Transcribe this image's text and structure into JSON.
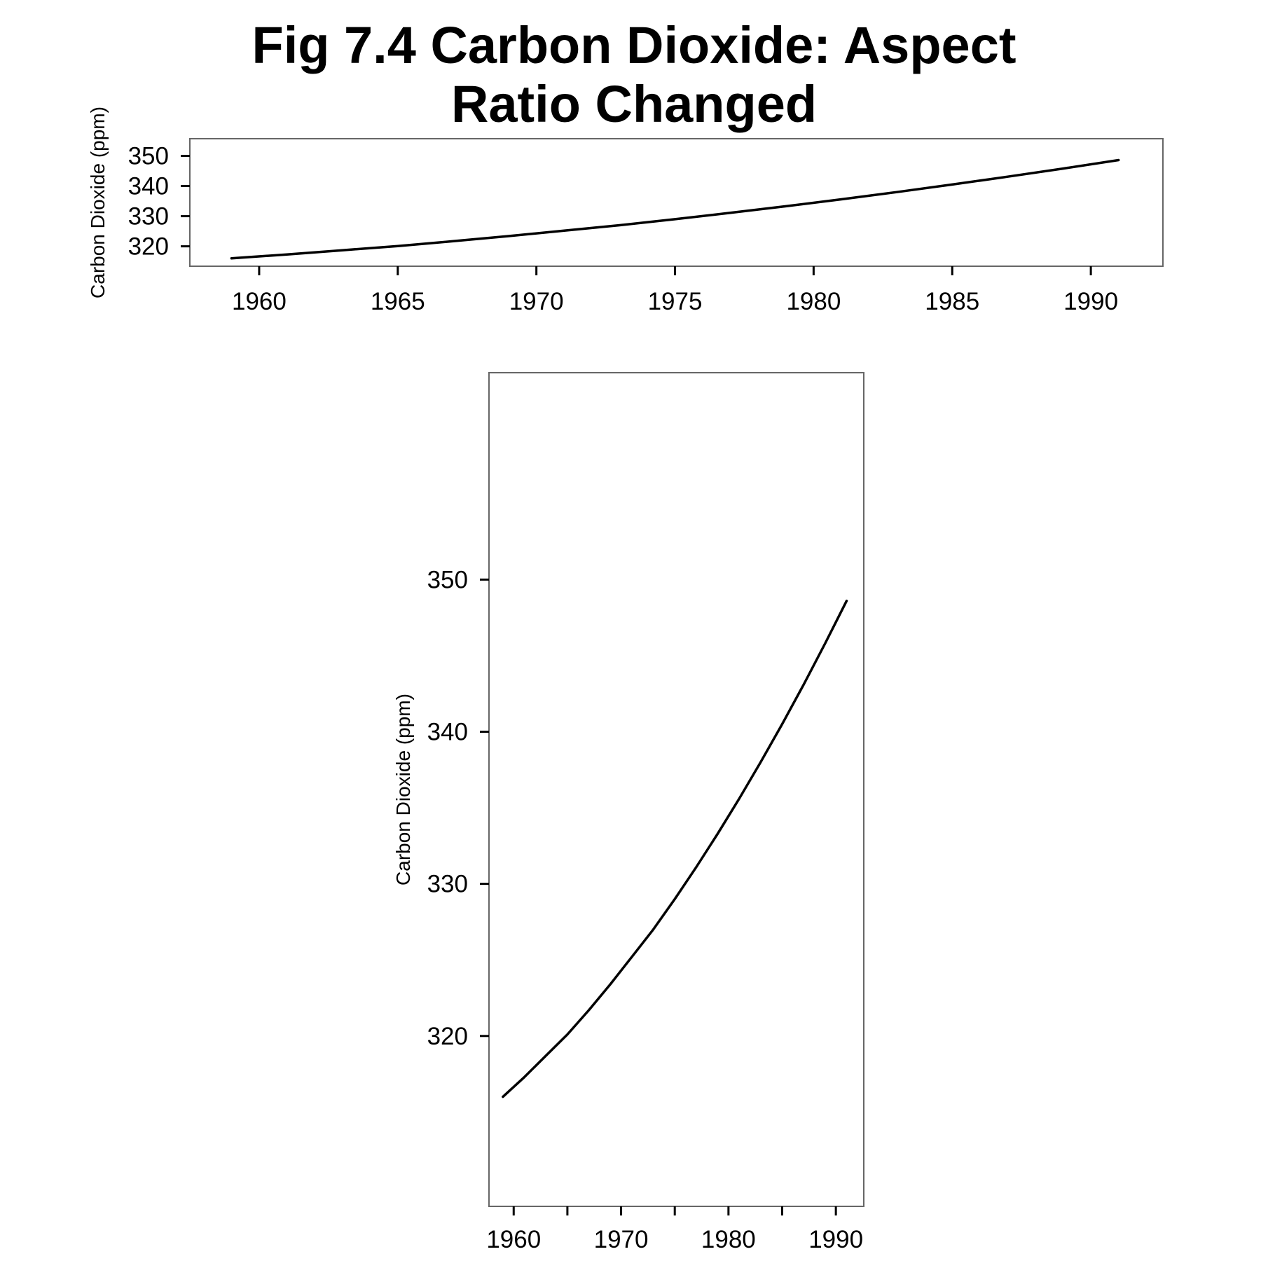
{
  "figure": {
    "title_line1": "Fig 7.4 Carbon Dioxide: Aspect",
    "title_line2": "Ratio Changed"
  },
  "chart_data": [
    {
      "type": "line",
      "panel": "top (wide, short)",
      "ylabel": "Carbon Dioxide (ppm)",
      "xlabel": "",
      "x": [
        1959,
        1961,
        1963,
        1965,
        1967,
        1969,
        1971,
        1973,
        1975,
        1977,
        1979,
        1981,
        1983,
        1985,
        1987,
        1989,
        1991
      ],
      "series": [
        {
          "values": [
            316.0,
            317.3,
            318.7,
            320.1,
            321.7,
            323.4,
            325.2,
            327.0,
            329.0,
            331.1,
            333.3,
            335.6,
            338.0,
            340.5,
            343.1,
            345.8,
            348.6
          ]
        }
      ],
      "xticks": [
        1960,
        1965,
        1970,
        1975,
        1980,
        1985,
        1990
      ],
      "yticks": [
        320,
        330,
        340,
        350
      ],
      "xlim": [
        1957.5,
        1992.6
      ],
      "ylim": [
        313.4,
        355.7
      ],
      "grid": false,
      "color": "#000000"
    },
    {
      "type": "line",
      "panel": "bottom (narrow, tall)",
      "ylabel": "Carbon Dioxide (ppm)",
      "xlabel": "",
      "x": [
        1959,
        1961,
        1963,
        1965,
        1967,
        1969,
        1971,
        1973,
        1975,
        1977,
        1979,
        1981,
        1983,
        1985,
        1987,
        1989,
        1991
      ],
      "series": [
        {
          "values": [
            316.0,
            317.3,
            318.7,
            320.1,
            321.7,
            323.4,
            325.2,
            327.0,
            329.0,
            331.1,
            333.3,
            335.6,
            338.0,
            340.5,
            343.1,
            345.8,
            348.6
          ]
        }
      ],
      "xticks": [
        1960,
        1970,
        1980,
        1990
      ],
      "xticks_minor": [
        1965,
        1975,
        1985
      ],
      "yticks": [
        320,
        330,
        340,
        350
      ],
      "xlim": [
        1957.7,
        1992.6
      ],
      "ylim": [
        308.8,
        363.6
      ],
      "grid": false,
      "color": "#000000"
    }
  ]
}
